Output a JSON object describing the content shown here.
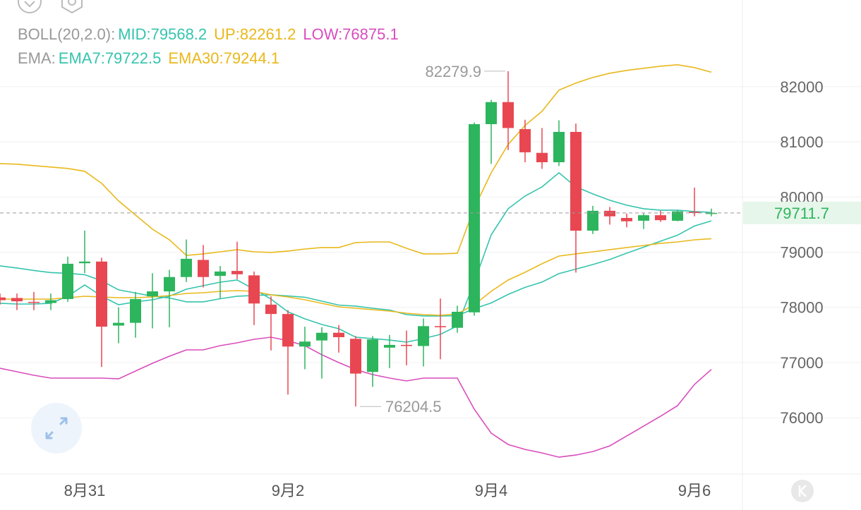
{
  "chart_data": {
    "type": "candlestick",
    "x": [
      null,
      null,
      null,
      null,
      null,
      "8月31",
      null,
      null,
      null,
      null,
      null,
      null,
      null,
      null,
      null,
      null,
      null,
      "9月2",
      null,
      null,
      null,
      null,
      null,
      null,
      null,
      null,
      null,
      null,
      null,
      "9月4",
      null,
      null,
      null,
      null,
      null,
      null,
      null,
      null,
      null,
      null,
      null,
      "9月6",
      null
    ],
    "open": [
      78180,
      78170,
      78100,
      78080,
      78150,
      78800,
      78830,
      77670,
      77720,
      78200,
      78290,
      78550,
      78860,
      78570,
      78660,
      78580,
      78050,
      77880,
      77290,
      77400,
      77540,
      77430,
      76830,
      77270,
      77320,
      77300,
      77660,
      77630,
      77910,
      81320,
      81720,
      81230,
      80800,
      80630,
      81180,
      79390,
      79750,
      79620,
      79570,
      79670,
      79570,
      79730,
      79710
    ],
    "high": [
      78250,
      78250,
      78280,
      78250,
      78920,
      79390,
      78900,
      78000,
      78280,
      78620,
      78680,
      79230,
      79130,
      78750,
      79190,
      78650,
      78200,
      77950,
      77650,
      77640,
      77680,
      77480,
      77480,
      77500,
      77580,
      77800,
      78160,
      78030,
      81350,
      81760,
      82279.9,
      81400,
      81250,
      81390,
      81330,
      79840,
      79820,
      79700,
      79700,
      79750,
      79760,
      80170,
      79790
    ],
    "low": [
      78050,
      77950,
      77950,
      77950,
      78100,
      78620,
      76920,
      77350,
      77450,
      77620,
      77640,
      78460,
      78360,
      78160,
      78510,
      77680,
      77220,
      76420,
      76880,
      76710,
      77180,
      76204.5,
      76560,
      76900,
      76950,
      76930,
      77060,
      77540,
      77850,
      80600,
      80850,
      80630,
      80510,
      80560,
      78630,
      79330,
      79500,
      79450,
      79420,
      79550,
      79560,
      79650,
      79650
    ],
    "close": [
      78130,
      78110,
      78090,
      78130,
      78790,
      78830,
      77650,
      77720,
      78150,
      78290,
      78550,
      78880,
      78550,
      78650,
      78600,
      78070,
      77880,
      77290,
      77380,
      77540,
      77460,
      76800,
      77420,
      77320,
      77300,
      77660,
      77640,
      77920,
      81320,
      81720,
      81250,
      80810,
      80630,
      81180,
      79390,
      79750,
      79650,
      79560,
      79670,
      79580,
      79740,
      79710,
      79711.7
    ],
    "up_color": "#2db55d",
    "down_color": "#e84752",
    "indicators": [
      {
        "title": "BOLL(20,2.0):",
        "series": [
          {
            "name": "MID:79568.2",
            "color": "#35c4ad",
            "values": [
              78752,
              78714,
              78669,
              78631,
              78618,
              78592,
              78483,
              78317,
              78260,
              78202,
              78170,
              78100,
              78100,
              78157,
              78202,
              78215,
              78228,
              78208,
              78183,
              78113,
              78042,
              78023,
              77984,
              77952,
              77869,
              77844,
              77844,
              77849,
              77978,
              78080,
              78234,
              78362,
              78458,
              78611,
              78694,
              78777,
              78867,
              78982,
              79091,
              79199,
              79308,
              79474,
              79568.2
            ]
          },
          {
            "name": "UP:82261.2",
            "color": "#e9b81c",
            "values": [
              80606,
              80594,
              80568,
              80543,
              80517,
              80466,
              80248,
              79929,
              79673,
              79417,
              79225,
              78943,
              78969,
              79007,
              79046,
              79007,
              78995,
              79020,
              79058,
              79084,
              79084,
              79174,
              79186,
              79186,
              79071,
              78970,
              78970,
              78980,
              79800,
              80440,
              80951,
              81297,
              81553,
              81936,
              82064,
              82166,
              82243,
              82294,
              82333,
              82371,
              82396,
              82345,
              82261.2
            ]
          },
          {
            "name": "LOW:76875.1",
            "color": "#d94dbd",
            "values": [
              76897,
              76833,
              76769,
              76718,
              76718,
              76718,
              76718,
              76705,
              76846,
              76987,
              77115,
              77230,
              77230,
              77307,
              77358,
              77422,
              77460,
              77396,
              77307,
              77141,
              77000,
              76872,
              76782,
              76718,
              76667,
              76718,
              76718,
              76718,
              76155,
              75720,
              75516,
              75426,
              75362,
              75286,
              75324,
              75388,
              75490,
              75669,
              75848,
              76027,
              76219,
              76603,
              76875.1
            ]
          }
        ]
      },
      {
        "title": "EMA:",
        "series": [
          {
            "name": "EMA7:79722.5",
            "color": "#35c4ad",
            "values": [
              78075,
              78061,
              78061,
              78075,
              78202,
              78407,
              78202,
              78048,
              78099,
              78137,
              78202,
              78329,
              78393,
              78457,
              78496,
              78329,
              78150,
              77920,
              77792,
              77690,
              77613,
              77460,
              77434,
              77408,
              77370,
              77434,
              77511,
              77664,
              78457,
              79314,
              79787,
              80018,
              80184,
              80440,
              80184,
              80056,
              79941,
              79851,
              79787,
              79762,
              79762,
              79736,
              79722.5
            ]
          },
          {
            "name": "EMA30:79244.1",
            "color": "#e9b81c",
            "values": [
              78150,
              78150,
              78150,
              78150,
              78176,
              78201,
              78189,
              78176,
              78176,
              78189,
              78214,
              78253,
              78265,
              78291,
              78304,
              78291,
              78227,
              78189,
              78137,
              78073,
              78009,
              77984,
              77958,
              77933,
              77894,
              77869,
              77856,
              77882,
              78048,
              78291,
              78495,
              78636,
              78790,
              78930,
              78969,
              79007,
              79046,
              79084,
              79122,
              79161,
              79186,
              79224,
              79244.1
            ]
          }
        ]
      }
    ],
    "ylim": [
      74980,
      83570
    ],
    "yticks": [
      76000,
      77000,
      78000,
      79000,
      80000,
      81000,
      82000
    ],
    "grid": true
  }
}
